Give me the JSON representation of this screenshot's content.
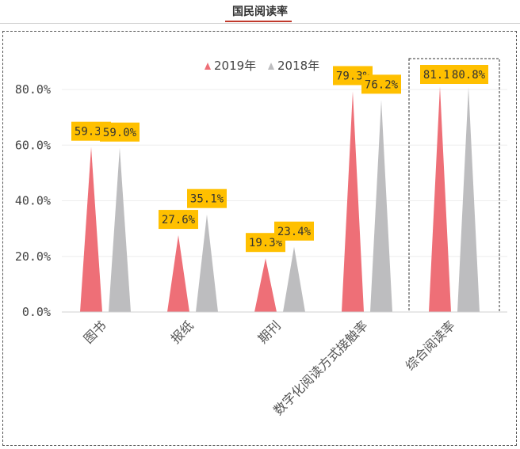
{
  "header": {
    "title": "国民阅读率"
  },
  "chart_data": {
    "type": "bar",
    "title": "",
    "xlabel": "",
    "ylabel": "",
    "ylim": [
      0,
      90
    ],
    "y_ticks": [
      "0.0%",
      "20.0%",
      "40.0%",
      "60.0%",
      "80.0%"
    ],
    "y_tick_values": [
      0,
      20,
      40,
      60,
      80
    ],
    "categories": [
      "图书",
      "报纸",
      "期刊",
      "数字化阅读方式接触率",
      "综合阅读率"
    ],
    "series": [
      {
        "name": "2019年",
        "color": "#ee6f77",
        "values": [
          59.3,
          27.6,
          19.3,
          79.3,
          81.1
        ],
        "labels": [
          "59.3%",
          "27.6%",
          "19.3%",
          "79.3%",
          "81.1%"
        ]
      },
      {
        "name": "2018年",
        "color": "#bdbdbf",
        "values": [
          59.0,
          35.1,
          23.4,
          76.2,
          80.8
        ],
        "labels": [
          "59.0%",
          "35.1%",
          "23.4%",
          "76.2%",
          "80.8%"
        ]
      }
    ],
    "label_box_color": "#ffc000",
    "highlighted_category": "综合阅读率",
    "legend_position": "top",
    "grid": true
  }
}
